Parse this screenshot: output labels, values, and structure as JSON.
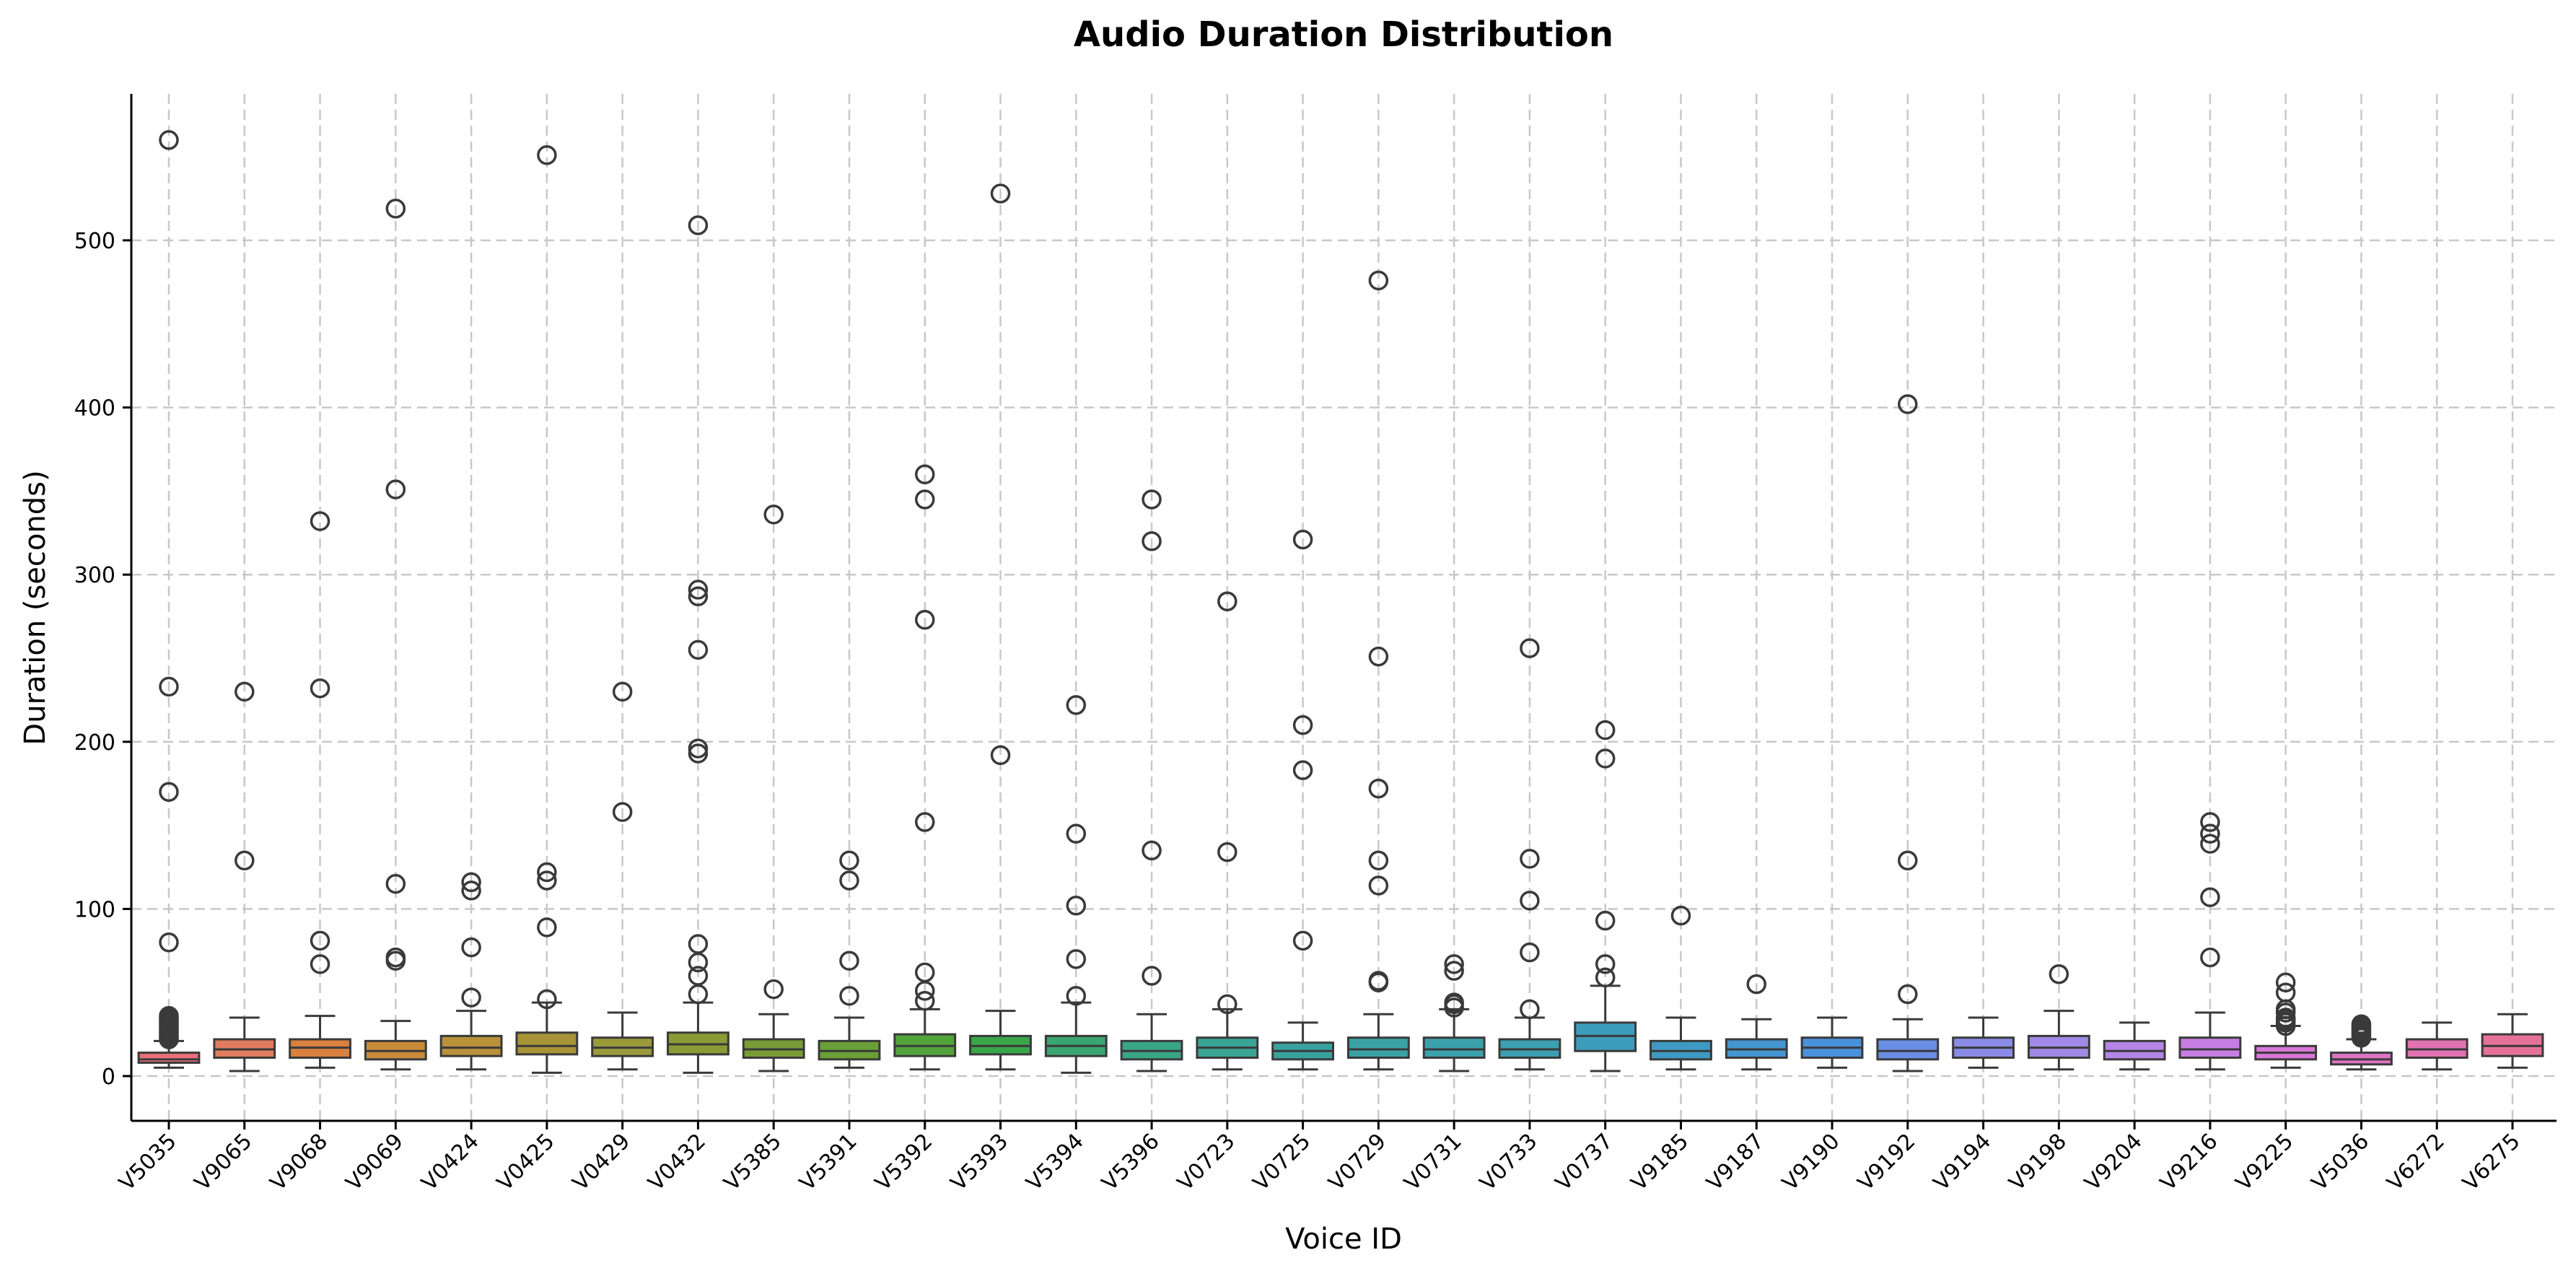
{
  "chart_data": {
    "type": "box",
    "title": "Audio Duration Distribution",
    "xlabel": "Voice ID",
    "ylabel": "Duration (seconds)",
    "ylim": [
      -25,
      590
    ],
    "yticks": [
      0,
      100,
      200,
      300,
      400,
      500
    ],
    "grid": true,
    "categories": [
      "V5035",
      "V9065",
      "V9068",
      "V9069",
      "V0424",
      "V0425",
      "V0429",
      "V0432",
      "V5385",
      "V5391",
      "V5392",
      "V5393",
      "V5394",
      "V5396",
      "V0723",
      "V0725",
      "V0729",
      "V0731",
      "V0733",
      "V0737",
      "V9185",
      "V9187",
      "V9190",
      "V9192",
      "V9194",
      "V9198",
      "V9204",
      "V9216",
      "V9225",
      "V5036",
      "V6272",
      "V6275"
    ],
    "colors": [
      "#e8707a",
      "#e07b5f",
      "#d9813e",
      "#c98a3a",
      "#b8913a",
      "#a89437",
      "#9a9a3a",
      "#8a9a35",
      "#7a9c36",
      "#6a9f36",
      "#52a33a",
      "#3aa64a",
      "#3aa570",
      "#39a587",
      "#39a494",
      "#38a39d",
      "#3aa2a5",
      "#3ba1ab",
      "#3c9fb2",
      "#3e9dbb",
      "#3f9ac3",
      "#4396cf",
      "#4a91db",
      "#6a8ee3",
      "#8a8be6",
      "#a089e6",
      "#b485e5",
      "#c77ee3",
      "#d877d8",
      "#de74c4",
      "#e272b1",
      "#e57098"
    ],
    "series": [
      {
        "q1": 8,
        "median": 10,
        "q3": 14,
        "whislo": 5,
        "whishi": 21,
        "fliers": [
          22,
          23,
          24,
          25,
          26,
          27,
          28,
          29,
          30,
          31,
          32,
          33,
          34,
          35,
          36,
          80,
          170,
          233,
          560
        ]
      },
      {
        "q1": 11,
        "median": 16,
        "q3": 22,
        "whislo": 3,
        "whishi": 35,
        "fliers": [
          129,
          230
        ]
      },
      {
        "q1": 11,
        "median": 17,
        "q3": 22,
        "whislo": 5,
        "whishi": 36,
        "fliers": [
          67,
          81,
          232,
          332
        ]
      },
      {
        "q1": 10,
        "median": 15,
        "q3": 21,
        "whislo": 4,
        "whishi": 33,
        "fliers": [
          69,
          71,
          115,
          351,
          519
        ]
      },
      {
        "q1": 12,
        "median": 17,
        "q3": 24,
        "whislo": 4,
        "whishi": 39,
        "fliers": [
          47,
          77,
          111,
          116
        ]
      },
      {
        "q1": 13,
        "median": 18,
        "q3": 26,
        "whislo": 2,
        "whishi": 44,
        "fliers": [
          46,
          89,
          117,
          122,
          551
        ]
      },
      {
        "q1": 12,
        "median": 17,
        "q3": 23,
        "whislo": 4,
        "whishi": 38,
        "fliers": [
          158,
          230
        ]
      },
      {
        "q1": 13,
        "median": 19,
        "q3": 26,
        "whislo": 2,
        "whishi": 44,
        "fliers": [
          49,
          60,
          68,
          79,
          193,
          196,
          255,
          287,
          291,
          509
        ]
      },
      {
        "q1": 11,
        "median": 16,
        "q3": 22,
        "whislo": 3,
        "whishi": 37,
        "fliers": [
          52,
          336
        ]
      },
      {
        "q1": 10,
        "median": 15,
        "q3": 21,
        "whislo": 5,
        "whishi": 35,
        "fliers": [
          48,
          69,
          117,
          129
        ]
      },
      {
        "q1": 12,
        "median": 18,
        "q3": 25,
        "whislo": 4,
        "whishi": 40,
        "fliers": [
          45,
          51,
          62,
          152,
          273,
          345,
          360
        ]
      },
      {
        "q1": 13,
        "median": 18,
        "q3": 24,
        "whislo": 4,
        "whishi": 39,
        "fliers": [
          192,
          528
        ]
      },
      {
        "q1": 12,
        "median": 18,
        "q3": 24,
        "whislo": 2,
        "whishi": 44,
        "fliers": [
          48,
          70,
          102,
          145,
          222
        ]
      },
      {
        "q1": 10,
        "median": 15,
        "q3": 21,
        "whislo": 3,
        "whishi": 37,
        "fliers": [
          60,
          135,
          320,
          345
        ]
      },
      {
        "q1": 11,
        "median": 17,
        "q3": 23,
        "whislo": 4,
        "whishi": 40,
        "fliers": [
          43,
          134,
          284
        ]
      },
      {
        "q1": 10,
        "median": 15,
        "q3": 20,
        "whislo": 4,
        "whishi": 32,
        "fliers": [
          81,
          183,
          210,
          321
        ]
      },
      {
        "q1": 11,
        "median": 16,
        "q3": 23,
        "whislo": 4,
        "whishi": 37,
        "fliers": [
          56,
          57,
          114,
          129,
          172,
          251,
          476
        ]
      },
      {
        "q1": 11,
        "median": 16,
        "q3": 23,
        "whislo": 3,
        "whishi": 40,
        "fliers": [
          41,
          43,
          44,
          63,
          67
        ]
      },
      {
        "q1": 11,
        "median": 16,
        "q3": 22,
        "whislo": 4,
        "whishi": 35,
        "fliers": [
          40,
          74,
          105,
          130,
          256
        ]
      },
      {
        "q1": 15,
        "median": 24,
        "q3": 32,
        "whislo": 3,
        "whishi": 54,
        "fliers": [
          59,
          67,
          93,
          190,
          207
        ]
      },
      {
        "q1": 10,
        "median": 15,
        "q3": 21,
        "whislo": 4,
        "whishi": 35,
        "fliers": [
          96
        ]
      },
      {
        "q1": 11,
        "median": 16,
        "q3": 22,
        "whislo": 4,
        "whishi": 34,
        "fliers": [
          55
        ]
      },
      {
        "q1": 11,
        "median": 17,
        "q3": 23,
        "whislo": 5,
        "whishi": 35,
        "fliers": []
      },
      {
        "q1": 10,
        "median": 15,
        "q3": 22,
        "whislo": 3,
        "whishi": 34,
        "fliers": [
          49,
          129,
          402
        ]
      },
      {
        "q1": 11,
        "median": 17,
        "q3": 23,
        "whislo": 5,
        "whishi": 35,
        "fliers": []
      },
      {
        "q1": 11,
        "median": 17,
        "q3": 24,
        "whislo": 4,
        "whishi": 39,
        "fliers": [
          61
        ]
      },
      {
        "q1": 10,
        "median": 15,
        "q3": 21,
        "whislo": 4,
        "whishi": 32,
        "fliers": []
      },
      {
        "q1": 11,
        "median": 16,
        "q3": 23,
        "whislo": 4,
        "whishi": 38,
        "fliers": [
          71,
          107,
          139,
          145,
          152
        ]
      },
      {
        "q1": 10,
        "median": 14,
        "q3": 18,
        "whislo": 5,
        "whishi": 30,
        "fliers": [
          30,
          32,
          33,
          34,
          35,
          38,
          40,
          50,
          56
        ]
      },
      {
        "q1": 7,
        "median": 10,
        "q3": 14,
        "whislo": 4,
        "whishi": 22,
        "fliers": [
          23,
          24,
          25,
          26,
          27,
          28,
          29,
          30,
          31
        ]
      },
      {
        "q1": 11,
        "median": 16,
        "q3": 22,
        "whislo": 4,
        "whishi": 32,
        "fliers": []
      },
      {
        "q1": 12,
        "median": 18,
        "q3": 25,
        "whislo": 5,
        "whishi": 37,
        "fliers": []
      }
    ]
  }
}
